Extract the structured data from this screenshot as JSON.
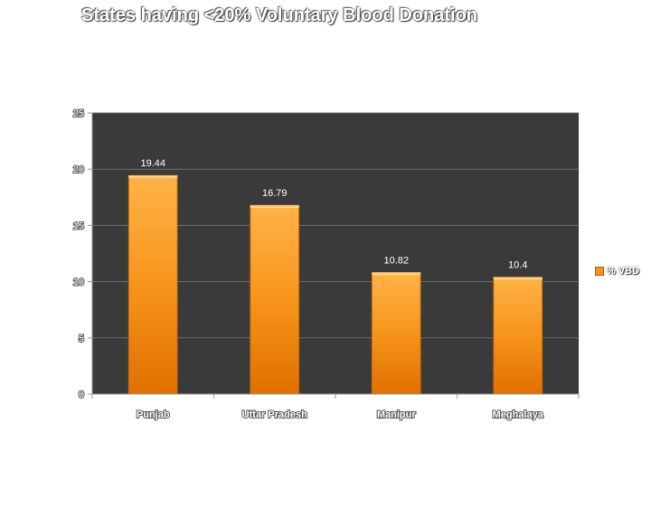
{
  "chart_data": {
    "type": "bar",
    "title": "States having <20% Voluntary Blood Donation",
    "categories": [
      "Punjab",
      "Uttar Pradesh",
      "Manipur",
      "Meghalaya"
    ],
    "series": [
      {
        "name": "% VBD",
        "values": [
          19.44,
          16.79,
          10.82,
          10.4
        ]
      }
    ],
    "data_labels": [
      "19.44",
      "16.79",
      "10.82",
      "10.4"
    ],
    "ylim": [
      0,
      25
    ],
    "yticks": [
      0,
      5,
      10,
      15,
      20,
      25
    ],
    "grid": true,
    "legend": "right",
    "colors": {
      "bar": "#f7941d",
      "bar_light": "#ffb347",
      "bar_dark": "#e07000",
      "plot_background": "#3a3a3a"
    }
  }
}
